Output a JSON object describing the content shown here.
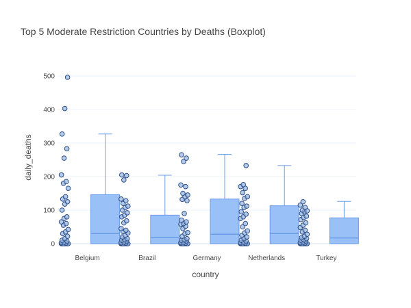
{
  "chart_data": {
    "type": "box",
    "title": "Top 5 Moderate Restriction Countries by Deaths (Boxplot)",
    "xlabel": "country",
    "ylabel": "daily_deaths",
    "ylim": [
      -10,
      520
    ],
    "yticks": [
      0,
      100,
      200,
      300,
      400,
      500
    ],
    "grid": true,
    "legend": "none",
    "box_color": "#8fb9f7",
    "line_color": "#6a9ce8",
    "point_fill": "#9bb8e0",
    "point_edge": "#2c4f8a",
    "categories": [
      "Belgium",
      "Brazil",
      "Germany",
      "Netherlands",
      "Turkey"
    ],
    "boxes": [
      {
        "name": "Belgium",
        "min": 0,
        "q1": 0,
        "median": 30,
        "q3": 146,
        "max": 327,
        "points": [
          0,
          0,
          0,
          0,
          0,
          0,
          0,
          0,
          0,
          0,
          2,
          3,
          5,
          8,
          10,
          15,
          22,
          30,
          35,
          42,
          55,
          60,
          65,
          75,
          80,
          100,
          118,
          125,
          133,
          140,
          165,
          180,
          185,
          205,
          255,
          283,
          327,
          403,
          496
        ]
      },
      {
        "name": "Brazil",
        "min": 0,
        "q1": 0,
        "median": 18,
        "q3": 85,
        "max": 204,
        "points": [
          0,
          0,
          0,
          0,
          0,
          0,
          0,
          0,
          0,
          0,
          2,
          3,
          5,
          8,
          10,
          12,
          15,
          20,
          25,
          32,
          36,
          40,
          45,
          62,
          68,
          80,
          85,
          92,
          100,
          108,
          112,
          120,
          128,
          133,
          190,
          203,
          205
        ]
      },
      {
        "name": "Germany",
        "min": 0,
        "q1": 0,
        "median": 28,
        "q3": 133,
        "max": 266,
        "points": [
          0,
          0,
          0,
          0,
          0,
          0,
          0,
          0,
          0,
          0,
          2,
          3,
          5,
          8,
          10,
          12,
          15,
          22,
          30,
          33,
          45,
          52,
          58,
          60,
          65,
          70,
          90,
          128,
          132,
          140,
          145,
          150,
          170,
          175,
          245,
          255,
          265
        ]
      },
      {
        "name": "Netherlands",
        "min": 0,
        "q1": 0,
        "median": 30,
        "q3": 113,
        "max": 233,
        "points": [
          0,
          0,
          0,
          0,
          0,
          0,
          0,
          0,
          0,
          0,
          2,
          3,
          5,
          8,
          10,
          15,
          20,
          25,
          32,
          38,
          50,
          60,
          75,
          80,
          88,
          95,
          108,
          112,
          120,
          135,
          140,
          152,
          165,
          170,
          176,
          233
        ]
      },
      {
        "name": "Turkey",
        "min": 0,
        "q1": 0,
        "median": 17,
        "q3": 77,
        "max": 126,
        "points": [
          0,
          0,
          0,
          0,
          0,
          0,
          0,
          0,
          0,
          0,
          2,
          3,
          5,
          8,
          10,
          12,
          15,
          18,
          22,
          28,
          35,
          40,
          48,
          55,
          62,
          72,
          78,
          82,
          90,
          95,
          98,
          100,
          108,
          115,
          125
        ]
      }
    ]
  }
}
